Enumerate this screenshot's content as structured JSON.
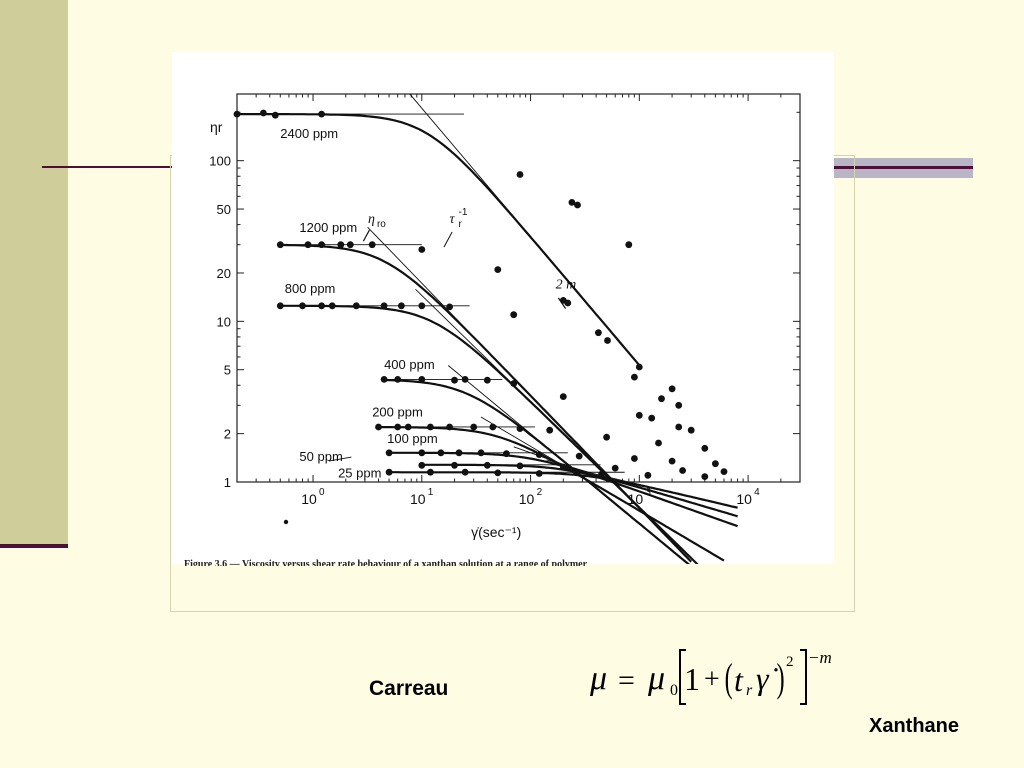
{
  "slide": {
    "model_label": "Carreau",
    "material_label": "Xanthane",
    "formula": {
      "lhs": "μ",
      "eq": "=",
      "mu0": "μ",
      "mu0_sub": "0",
      "one": "1",
      "plus": "+",
      "t": "t",
      "t_sub": "r",
      "gamma_dot": "γ̇",
      "square": "2",
      "exponent": "−m",
      "open_paren": "(",
      "close_paren": ")"
    },
    "caption": "Figure 3.6 — Viscosity versus shear rate behaviour of a xanthan solution at a range of polymer"
  },
  "chart_data": {
    "type": "line",
    "x_scale": "log",
    "y_scale": "log",
    "xlim": [
      0.2,
      30000
    ],
    "ylim": [
      1,
      260
    ],
    "grid": false,
    "xlabel": "γ̇(sec⁻¹)",
    "ylabel": "ηr",
    "x_ticks": [
      {
        "value": 1,
        "label": "10",
        "exp": "0"
      },
      {
        "value": 10,
        "label": "10",
        "exp": "1"
      },
      {
        "value": 100,
        "label": "10",
        "exp": "2"
      },
      {
        "value": 1000,
        "label": "10",
        "exp": "3"
      },
      {
        "value": 10000,
        "label": "10",
        "exp": "4"
      }
    ],
    "y_ticks": [
      {
        "value": 1,
        "label": "1"
      },
      {
        "value": 2,
        "label": "2"
      },
      {
        "value": 5,
        "label": "5"
      },
      {
        "value": 10,
        "label": "10"
      },
      {
        "value": 20,
        "label": "20"
      },
      {
        "value": 50,
        "label": "50"
      },
      {
        "value": 100,
        "label": "100"
      }
    ],
    "series": [
      {
        "name": "2400 ppm",
        "eta0": 195,
        "tr": 0.09,
        "m": 0.4,
        "xmax": 1000,
        "label_at": [
          0.5,
          138
        ],
        "points": [
          [
            0.2,
            195
          ],
          [
            0.35,
            198
          ],
          [
            0.45,
            192
          ],
          [
            1.2,
            195
          ],
          [
            80,
            82
          ],
          [
            240,
            55
          ],
          [
            270,
            53
          ],
          [
            800,
            30
          ]
        ]
      },
      {
        "name": "1200 ppm",
        "eta0": 30,
        "tr": 0.22,
        "m": 0.35,
        "xmax": 3000,
        "label_at": [
          0.75,
          36
        ],
        "points": [
          [
            0.5,
            30
          ],
          [
            0.9,
            30
          ],
          [
            1.2,
            30
          ],
          [
            1.8,
            30
          ],
          [
            2.2,
            30
          ],
          [
            3.5,
            30
          ],
          [
            10,
            28
          ],
          [
            50,
            21
          ],
          [
            200,
            13.5
          ],
          [
            220,
            13
          ],
          [
            420,
            8.5
          ],
          [
            510,
            7.6
          ],
          [
            1000,
            5.2
          ],
          [
            2000,
            3.8
          ]
        ]
      },
      {
        "name": "800 ppm",
        "eta0": 12.5,
        "tr": 0.08,
        "m": 0.33,
        "xmax": 4000,
        "label_at": [
          0.55,
          15
        ],
        "points": [
          [
            0.5,
            12.5
          ],
          [
            0.8,
            12.5
          ],
          [
            1.2,
            12.5
          ],
          [
            1.5,
            12.5
          ],
          [
            2.5,
            12.5
          ],
          [
            4.5,
            12.5
          ],
          [
            6.5,
            12.5
          ],
          [
            10,
            12.5
          ],
          [
            18,
            12.3
          ],
          [
            70,
            11
          ],
          [
            900,
            4.5
          ],
          [
            1600,
            3.3
          ],
          [
            2300,
            3.0
          ]
        ]
      },
      {
        "name": "400 ppm",
        "eta0": 4.35,
        "tr": 0.04,
        "m": 0.28,
        "xmax": 5000,
        "label_at": [
          4.5,
          5.05
        ],
        "points": [
          [
            4.5,
            4.35
          ],
          [
            6,
            4.35
          ],
          [
            10,
            4.35
          ],
          [
            20,
            4.3
          ],
          [
            25,
            4.35
          ],
          [
            40,
            4.3
          ],
          [
            70,
            4.1
          ],
          [
            200,
            3.4
          ],
          [
            1000,
            2.6
          ],
          [
            1300,
            2.5
          ],
          [
            2300,
            2.2
          ],
          [
            3000,
            2.1
          ]
        ]
      },
      {
        "name": "200 ppm",
        "eta0": 2.2,
        "tr": 0.02,
        "m": 0.2,
        "xmax": 6000,
        "label_at": [
          3.5,
          2.55
        ],
        "points": [
          [
            4,
            2.2
          ],
          [
            6,
            2.2
          ],
          [
            7.5,
            2.2
          ],
          [
            12,
            2.2
          ],
          [
            18,
            2.2
          ],
          [
            30,
            2.2
          ],
          [
            45,
            2.2
          ],
          [
            80,
            2.15
          ],
          [
            150,
            2.1
          ],
          [
            500,
            1.9
          ],
          [
            1500,
            1.75
          ],
          [
            4000,
            1.62
          ]
        ]
      },
      {
        "name": "100 ppm",
        "eta0": 1.52,
        "tr": 0.01,
        "m": 0.12,
        "xmax": 8000,
        "label_at": [
          4.8,
          1.75
        ],
        "points": [
          [
            5,
            1.52
          ],
          [
            10,
            1.52
          ],
          [
            15,
            1.52
          ],
          [
            22,
            1.52
          ],
          [
            35,
            1.52
          ],
          [
            60,
            1.5
          ],
          [
            120,
            1.48
          ],
          [
            280,
            1.45
          ],
          [
            900,
            1.4
          ],
          [
            2000,
            1.35
          ],
          [
            5000,
            1.3
          ]
        ]
      },
      {
        "name": "50 ppm",
        "eta0": 1.28,
        "tr": 0.005,
        "m": 0.1,
        "xmax": 8000,
        "label_at": [
          0.75,
          1.35
        ],
        "arrow_to": [
          1.4,
          1.35
        ],
        "points": [
          [
            10,
            1.27
          ],
          [
            20,
            1.27
          ],
          [
            40,
            1.27
          ],
          [
            80,
            1.26
          ],
          [
            200,
            1.24
          ],
          [
            600,
            1.22
          ],
          [
            2500,
            1.18
          ],
          [
            6000,
            1.16
          ]
        ]
      },
      {
        "name": "25 ppm",
        "eta0": 1.15,
        "tr": 0.003,
        "m": 0.08,
        "xmax": 8000,
        "label_at": [
          1.7,
          1.07
        ],
        "points": [
          [
            5,
            1.15
          ],
          [
            12,
            1.15
          ],
          [
            25,
            1.15
          ],
          [
            50,
            1.14
          ],
          [
            120,
            1.13
          ],
          [
            450,
            1.12
          ],
          [
            1200,
            1.1
          ],
          [
            4000,
            1.08
          ]
        ]
      }
    ],
    "annotations": [
      {
        "text": "η",
        "sub": "ro",
        "at": [
          3.2,
          41
        ]
      },
      {
        "text": "τ",
        "sub": "r",
        "sup": "-1",
        "at": [
          18,
          41
        ]
      },
      {
        "text": "2 m",
        "at": [
          170,
          16
        ]
      }
    ]
  }
}
